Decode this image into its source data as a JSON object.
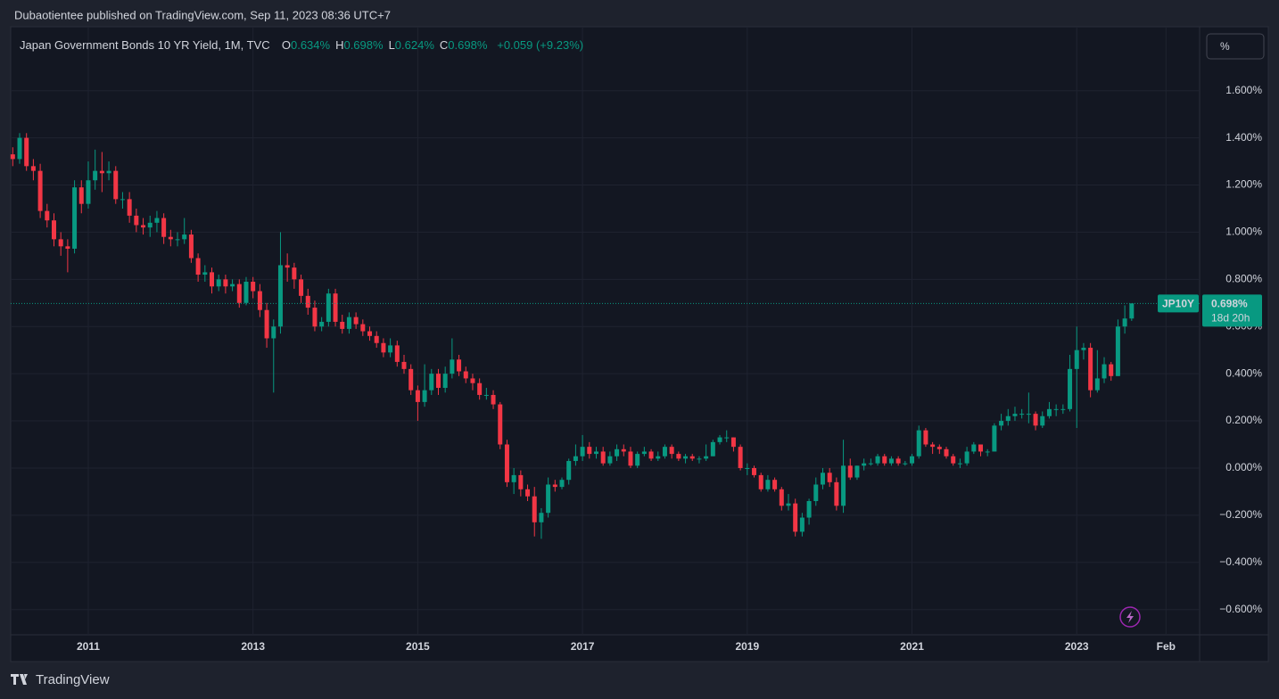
{
  "header": {
    "published": "Dubaotientee published on TradingView.com, Sep 11, 2023 08:36 UTC+7",
    "symbol": "Japan Government Bonds 10 YR Yield, 1M, TVC",
    "ohlc": [
      {
        "key": "O",
        "text": "0.634%"
      },
      {
        "key": "H",
        "text": "0.698%"
      },
      {
        "key": "L",
        "text": "0.624%"
      },
      {
        "key": "C",
        "text": "0.698%"
      }
    ],
    "change": "+0.059 (+9.23%)",
    "unit_button": "%"
  },
  "badge": {
    "ticker": "JP10Y",
    "price": "0.698%",
    "countdown": "18d 20h"
  },
  "footer": {
    "brand": "TradingView"
  },
  "chart_data": {
    "type": "candlestick",
    "up_color": "#089981",
    "down_color": "#f23645",
    "xlim": [
      -0.3,
      172.9
    ],
    "ylim": [
      -0.707,
      1.871
    ],
    "xticks": [
      {
        "value": 11,
        "label": "2011"
      },
      {
        "value": 35,
        "label": "2013"
      },
      {
        "value": 59,
        "label": "2015"
      },
      {
        "value": 83,
        "label": "2017"
      },
      {
        "value": 107,
        "label": "2019"
      },
      {
        "value": 131,
        "label": "2021"
      },
      {
        "value": 155,
        "label": "2023"
      },
      {
        "value": 168,
        "label": "Feb"
      }
    ],
    "yticks": [
      {
        "value": 1.6,
        "label": "1.600%"
      },
      {
        "value": 1.4,
        "label": "1.400%"
      },
      {
        "value": 1.2,
        "label": "1.200%"
      },
      {
        "value": 1.0,
        "label": "1.000%"
      },
      {
        "value": 0.8,
        "label": "0.800%"
      },
      {
        "value": 0.6,
        "label": "0.600%"
      },
      {
        "value": 0.4,
        "label": "0.400%"
      },
      {
        "value": 0.2,
        "label": "0.200%"
      },
      {
        "value": 0,
        "label": "0.000%"
      },
      {
        "value": -0.2,
        "label": "−0.200%"
      },
      {
        "value": -0.4,
        "label": "−0.400%"
      },
      {
        "value": -0.6,
        "label": "−0.600%"
      }
    ],
    "grid": true,
    "open": [
      1.33,
      1.31,
      1.4,
      1.28,
      1.26,
      1.09,
      1.05,
      0.97,
      0.94,
      0.93,
      1.19,
      1.12,
      1.22,
      1.26,
      1.25,
      1.26,
      1.14,
      1.14,
      1.07,
      1.03,
      1.02,
      1.04,
      1.06,
      0.98,
      0.97,
      0.97,
      0.99,
      0.89,
      0.82,
      0.83,
      0.77,
      0.8,
      0.77,
      0.78,
      0.7,
      0.79,
      0.75,
      0.67,
      0.55,
      0.6,
      0.86,
      0.85,
      0.8,
      0.73,
      0.68,
      0.6,
      0.62,
      0.74,
      0.62,
      0.59,
      0.64,
      0.61,
      0.58,
      0.56,
      0.53,
      0.49,
      0.52,
      0.45,
      0.42,
      0.33,
      0.28,
      0.33,
      0.4,
      0.34,
      0.4,
      0.46,
      0.41,
      0.38,
      0.36,
      0.31,
      0.31,
      0.27,
      0.1,
      -0.06,
      -0.03,
      -0.09,
      -0.12,
      -0.23,
      -0.19,
      -0.07,
      -0.08,
      -0.05,
      0.03,
      0.05,
      0.09,
      0.06,
      0.07,
      0.02,
      0.05,
      0.08,
      0.07,
      0.01,
      0.06,
      0.07,
      0.04,
      0.05,
      0.09,
      0.06,
      0.04,
      0.05,
      0.04,
      0.04,
      0.05,
      0.11,
      0.13,
      0.13,
      0.09,
      0.0,
      0.0,
      -0.03,
      -0.09,
      -0.05,
      -0.09,
      -0.16,
      -0.15,
      -0.27,
      -0.21,
      -0.14,
      -0.07,
      -0.02,
      -0.06,
      -0.16,
      0.01,
      -0.04,
      0.01,
      0.02,
      0.02,
      0.05,
      0.02,
      0.04,
      0.02,
      0.02,
      0.05,
      0.16,
      0.1,
      0.09,
      0.08,
      0.05,
      0.02,
      0.02,
      0.07,
      0.1,
      0.07,
      0.07,
      0.18,
      0.2,
      0.22,
      0.23,
      0.23,
      0.23,
      0.18,
      0.22,
      0.25,
      0.25,
      0.25,
      0.42,
      0.5,
      0.51,
      0.33,
      0.38,
      0.44,
      0.39,
      0.6,
      0.634
    ],
    "high": [
      1.36,
      1.42,
      1.42,
      1.31,
      1.29,
      1.12,
      1.08,
      1.0,
      0.97,
      1.22,
      1.22,
      1.3,
      1.35,
      1.34,
      1.3,
      1.28,
      1.17,
      1.17,
      1.1,
      1.06,
      1.07,
      1.09,
      1.08,
      1.01,
      1.0,
      1.06,
      1.01,
      0.91,
      0.86,
      0.85,
      0.82,
      0.82,
      0.8,
      0.8,
      0.81,
      0.81,
      0.78,
      0.7,
      0.63,
      1.0,
      0.91,
      0.87,
      0.82,
      0.76,
      0.71,
      0.64,
      0.76,
      0.76,
      0.65,
      0.66,
      0.66,
      0.63,
      0.6,
      0.58,
      0.55,
      0.55,
      0.54,
      0.48,
      0.44,
      0.35,
      0.44,
      0.42,
      0.42,
      0.43,
      0.55,
      0.48,
      0.43,
      0.4,
      0.38,
      0.34,
      0.33,
      0.28,
      0.12,
      0.0,
      -0.01,
      -0.07,
      -0.08,
      -0.17,
      -0.04,
      -0.05,
      -0.04,
      0.04,
      0.1,
      0.14,
      0.11,
      0.09,
      0.09,
      0.07,
      0.1,
      0.1,
      0.09,
      0.07,
      0.09,
      0.08,
      0.07,
      0.1,
      0.1,
      0.07,
      0.06,
      0.06,
      0.05,
      0.1,
      0.12,
      0.14,
      0.16,
      0.13,
      0.1,
      0.02,
      0.01,
      -0.02,
      -0.03,
      -0.04,
      -0.08,
      -0.11,
      -0.13,
      -0.19,
      -0.13,
      -0.04,
      0.0,
      0.0,
      -0.04,
      0.12,
      0.04,
      0.01,
      0.04,
      0.04,
      0.06,
      0.06,
      0.05,
      0.05,
      0.03,
      0.06,
      0.18,
      0.17,
      0.11,
      0.1,
      0.09,
      0.06,
      0.04,
      0.09,
      0.11,
      0.1,
      0.08,
      0.19,
      0.23,
      0.25,
      0.26,
      0.25,
      0.32,
      0.24,
      0.24,
      0.28,
      0.27,
      0.27,
      0.48,
      0.6,
      0.53,
      0.53,
      0.5,
      0.47,
      0.45,
      0.63,
      0.69,
      0.698
    ],
    "low": [
      1.28,
      1.29,
      1.26,
      1.22,
      1.06,
      1.02,
      0.94,
      0.9,
      0.83,
      0.91,
      1.08,
      1.1,
      1.18,
      1.17,
      1.22,
      1.12,
      1.1,
      1.04,
      1.0,
      0.99,
      0.98,
      1.0,
      0.95,
      0.94,
      0.94,
      0.95,
      0.87,
      0.79,
      0.79,
      0.74,
      0.75,
      0.74,
      0.75,
      0.68,
      0.69,
      0.72,
      0.64,
      0.51,
      0.32,
      0.57,
      0.79,
      0.76,
      0.7,
      0.65,
      0.58,
      0.58,
      0.6,
      0.6,
      0.57,
      0.57,
      0.59,
      0.56,
      0.54,
      0.51,
      0.47,
      0.47,
      0.43,
      0.4,
      0.31,
      0.2,
      0.26,
      0.31,
      0.31,
      0.32,
      0.38,
      0.39,
      0.36,
      0.33,
      0.29,
      0.29,
      0.25,
      0.08,
      -0.08,
      -0.11,
      -0.12,
      -0.14,
      -0.29,
      -0.3,
      -0.21,
      -0.1,
      -0.09,
      -0.07,
      0.01,
      0.03,
      0.04,
      0.04,
      0.01,
      0.01,
      0.03,
      0.05,
      0.0,
      0.0,
      0.05,
      0.03,
      0.03,
      0.04,
      0.04,
      0.03,
      0.02,
      0.03,
      0.02,
      0.03,
      0.05,
      0.1,
      0.11,
      0.07,
      -0.01,
      -0.03,
      -0.04,
      -0.1,
      -0.1,
      -0.1,
      -0.18,
      -0.18,
      -0.29,
      -0.29,
      -0.24,
      -0.16,
      -0.09,
      -0.08,
      -0.18,
      -0.19,
      -0.05,
      -0.05,
      -0.01,
      0.01,
      0.01,
      0.01,
      0.01,
      0.01,
      0.01,
      0.01,
      0.04,
      0.09,
      0.06,
      0.06,
      0.04,
      0.01,
      0.0,
      0.01,
      0.06,
      0.05,
      0.05,
      0.07,
      0.16,
      0.18,
      0.2,
      0.21,
      0.19,
      0.16,
      0.17,
      0.21,
      0.22,
      0.23,
      0.24,
      0.17,
      0.46,
      0.3,
      0.32,
      0.36,
      0.37,
      0.39,
      0.57,
      0.624
    ],
    "close": [
      1.31,
      1.4,
      1.28,
      1.26,
      1.09,
      1.05,
      0.97,
      0.94,
      0.93,
      1.19,
      1.12,
      1.22,
      1.26,
      1.25,
      1.26,
      1.14,
      1.14,
      1.07,
      1.03,
      1.02,
      1.04,
      1.06,
      0.98,
      0.97,
      0.97,
      0.99,
      0.89,
      0.82,
      0.83,
      0.77,
      0.8,
      0.77,
      0.78,
      0.7,
      0.79,
      0.75,
      0.67,
      0.55,
      0.6,
      0.86,
      0.85,
      0.8,
      0.73,
      0.68,
      0.6,
      0.62,
      0.74,
      0.62,
      0.59,
      0.64,
      0.61,
      0.58,
      0.56,
      0.53,
      0.49,
      0.52,
      0.45,
      0.42,
      0.33,
      0.28,
      0.33,
      0.4,
      0.34,
      0.4,
      0.46,
      0.41,
      0.38,
      0.36,
      0.31,
      0.31,
      0.27,
      0.1,
      -0.06,
      -0.03,
      -0.09,
      -0.12,
      -0.23,
      -0.19,
      -0.07,
      -0.08,
      -0.05,
      0.03,
      0.05,
      0.09,
      0.06,
      0.07,
      0.02,
      0.05,
      0.08,
      0.07,
      0.01,
      0.06,
      0.07,
      0.04,
      0.05,
      0.09,
      0.06,
      0.04,
      0.05,
      0.04,
      0.04,
      0.05,
      0.11,
      0.13,
      0.13,
      0.09,
      0.0,
      0.0,
      -0.03,
      -0.09,
      -0.05,
      -0.09,
      -0.16,
      -0.15,
      -0.27,
      -0.21,
      -0.14,
      -0.07,
      -0.02,
      -0.06,
      -0.16,
      0.01,
      -0.04,
      0.01,
      0.02,
      0.02,
      0.05,
      0.02,
      0.04,
      0.02,
      0.02,
      0.05,
      0.16,
      0.1,
      0.09,
      0.08,
      0.05,
      0.02,
      0.02,
      0.07,
      0.1,
      0.07,
      0.07,
      0.18,
      0.2,
      0.22,
      0.23,
      0.23,
      0.23,
      0.18,
      0.22,
      0.25,
      0.25,
      0.25,
      0.42,
      0.5,
      0.51,
      0.33,
      0.38,
      0.44,
      0.39,
      0.6,
      0.634,
      0.698
    ]
  }
}
